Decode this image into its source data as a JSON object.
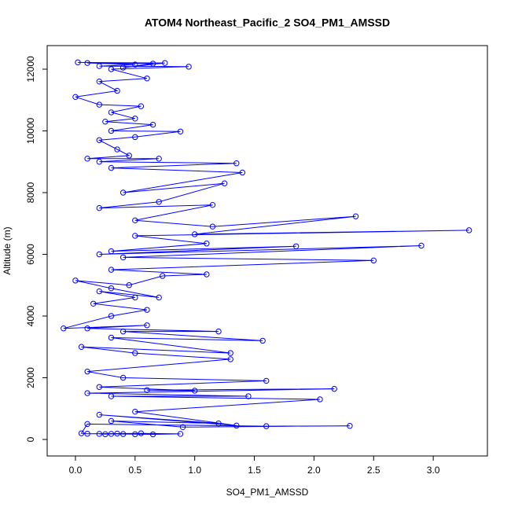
{
  "chart_data": {
    "type": "line",
    "markers": true,
    "title": "ATOM4 Northeast_Pacific_2 SO4_PM1_AMSSD",
    "xlabel": "SO4_PM1_AMSSD",
    "ylabel": "Altitude (m)",
    "color": "#0000ff",
    "xlim": [
      -0.237,
      3.454
    ],
    "ylim": [
      -535,
      12764
    ],
    "xticks": [
      {
        "value": 0,
        "label": "0.0"
      },
      0.5,
      {
        "value": 1,
        "label": "1.0"
      },
      1.5,
      {
        "value": 2,
        "label": "2.0"
      },
      2.5,
      {
        "value": 3,
        "label": "3.0"
      }
    ],
    "yticks": [
      0,
      2000,
      4000,
      6000,
      8000,
      10000,
      12000
    ],
    "x": [
      0.2,
      0.25,
      0.3,
      0.4,
      0.5,
      0.65,
      0.88,
      0.55,
      0.35,
      0.1,
      0.05,
      0.1,
      1.6,
      2.3,
      0.9,
      0.3,
      1.2,
      0.2,
      1.35,
      0.5,
      2.05,
      0.3,
      1.45,
      0.1,
      2.17,
      0.6,
      1.0,
      0.2,
      1.6,
      0.4,
      0.1,
      1.3,
      0.5,
      0.05,
      1.3,
      0.3,
      1.57,
      0.4,
      1.2,
      0.1,
      0.6,
      -0.1,
      0.3,
      0.6,
      0.15,
      0.5,
      0.2,
      0.7,
      0.3,
      0.0,
      0.45,
      0.73,
      1.1,
      0.3,
      2.5,
      0.4,
      2.9,
      0.2,
      1.85,
      0.3,
      1.1,
      0.5,
      3.3,
      1.0,
      2.35,
      1.15,
      0.5,
      1.15,
      0.2,
      0.7,
      1.25,
      0.4,
      1.4,
      0.3,
      1.35,
      0.2,
      0.7,
      0.1,
      0.45,
      0.35,
      0.2,
      0.5,
      0.88,
      0.3,
      0.65,
      0.25,
      0.5,
      0.3,
      0.55,
      0.2,
      0.0,
      0.35,
      0.2,
      0.6,
      0.3,
      0.95,
      0.2,
      0.5,
      0.1,
      0.65,
      0.4,
      0.75,
      0.02
    ],
    "y": [
      180,
      170,
      180,
      175,
      170,
      165,
      180,
      200,
      190,
      185,
      200,
      500,
      430,
      440,
      400,
      600,
      520,
      800,
      450,
      900,
      1300,
      1400,
      1400,
      1500,
      1640,
      1600,
      1580,
      1700,
      1900,
      2000,
      2200,
      2600,
      2800,
      3000,
      2800,
      3300,
      3200,
      3500,
      3500,
      3600,
      3700,
      3600,
      4000,
      4200,
      4400,
      4600,
      4800,
      4600,
      4900,
      5150,
      5000,
      5300,
      5350,
      5500,
      5800,
      5900,
      6280,
      6000,
      6260,
      6100,
      6350,
      6600,
      6780,
      6650,
      7230,
      6900,
      7100,
      7600,
      7500,
      7700,
      8300,
      8000,
      8650,
      8800,
      8950,
      9000,
      9100,
      9100,
      9200,
      9400,
      9700,
      9800,
      9980,
      10000,
      10200,
      10300,
      10400,
      10600,
      10800,
      10850,
      11100,
      11300,
      11600,
      11700,
      12000,
      12080,
      12100,
      12150,
      12200,
      12180,
      12050,
      12200,
      12220
    ]
  }
}
